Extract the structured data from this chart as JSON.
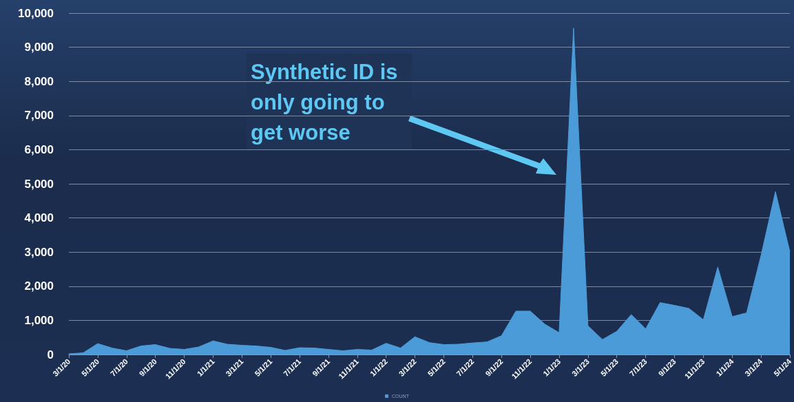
{
  "chart_data": {
    "type": "area",
    "categories": [
      "3/1/20",
      null,
      "5/1/20",
      null,
      "7/1/20",
      null,
      "9/1/20",
      null,
      "11/1/20",
      null,
      "1/1/21",
      null,
      "3/1/21",
      null,
      "5/1/21",
      null,
      "7/1/21",
      null,
      "9/1/21",
      null,
      "11/1/21",
      null,
      "1/1/22",
      null,
      "3/1/22",
      null,
      "5/1/22",
      null,
      "7/1/22",
      null,
      "9/1/22",
      null,
      "11/1/22",
      null,
      "1/1/23",
      null,
      "3/1/23",
      null,
      "5/1/23",
      null,
      "7/1/23",
      null,
      "9/1/23",
      null,
      "11/1/23",
      null,
      "1/1/24",
      null,
      "3/1/24",
      null,
      "5/1/24"
    ],
    "series": [
      {
        "name": "COUNT",
        "color": "#4a9bd8",
        "values": [
          20,
          50,
          320,
          190,
          110,
          250,
          290,
          180,
          150,
          220,
          400,
          300,
          270,
          250,
          210,
          120,
          200,
          190,
          150,
          110,
          150,
          130,
          330,
          190,
          520,
          350,
          290,
          300,
          340,
          370,
          550,
          1270,
          1270,
          890,
          640,
          9560,
          840,
          440,
          680,
          1170,
          750,
          1520,
          1440,
          1350,
          1020,
          2560,
          1110,
          1220,
          2900,
          4770,
          3010
        ]
      }
    ],
    "ylim": [
      0,
      10000
    ],
    "yticks": [
      0,
      {
        "value": 1000,
        "label": "1,000"
      },
      {
        "value": 2000,
        "label": "2,000"
      },
      {
        "value": 3000,
        "label": "3,000"
      },
      {
        "value": 4000,
        "label": "4,000"
      },
      {
        "value": 5000,
        "label": "5,000"
      },
      {
        "value": 6000,
        "label": "6,000"
      },
      {
        "value": 7000,
        "label": "7,000"
      },
      {
        "value": 8000,
        "label": "8,000"
      },
      {
        "value": 9000,
        "label": "9,000"
      },
      {
        "value": 10000,
        "label": "10,000"
      }
    ],
    "grid": "y",
    "legend": "bottom",
    "marker": "none",
    "annotations": [
      "Synthetic ID is only going to get worse"
    ]
  }
}
